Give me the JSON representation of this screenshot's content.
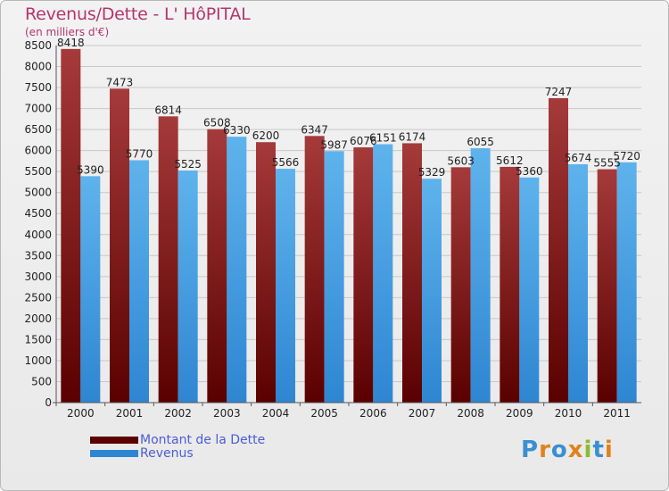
{
  "title": "Revenus/Dette - L' HôPITAL",
  "subtitle": "(en milliers d'€)",
  "logo": {
    "text": "Proxiti",
    "letter_colors": [
      "#3a8fd1",
      "#e0821c",
      "#3a8fd1",
      "#e0821c",
      "#8dbb2e",
      "#3a8fd1",
      "#e0821c"
    ]
  },
  "colors": {
    "dette_top": "#a53a3a",
    "dette_bottom": "#5a0000",
    "revenus_top": "#5fb3ec",
    "revenus_bottom": "#2e86d2",
    "grid": "#c8c8c8"
  },
  "chart_data": {
    "type": "bar",
    "categories": [
      "2000",
      "2001",
      "2002",
      "2003",
      "2004",
      "2005",
      "2006",
      "2007",
      "2008",
      "2009",
      "2010",
      "2011"
    ],
    "series": [
      {
        "name": "Montant de la Dette",
        "values": [
          8418,
          7473,
          6814,
          6508,
          6200,
          6347,
          6076,
          6174,
          5603,
          5612,
          7247,
          5555
        ]
      },
      {
        "name": "Revenus",
        "values": [
          5390,
          5770,
          5525,
          6330,
          5566,
          5987,
          6151,
          5329,
          6055,
          5360,
          5674,
          5720
        ]
      }
    ],
    "yticks": [
      0,
      500,
      1000,
      1500,
      2000,
      2500,
      3000,
      3500,
      4000,
      4500,
      5000,
      5500,
      6000,
      6500,
      7000,
      7500,
      8000,
      8500
    ],
    "ylim": [
      0,
      8500
    ],
    "grid": true,
    "legend_position": "bottom-left"
  }
}
